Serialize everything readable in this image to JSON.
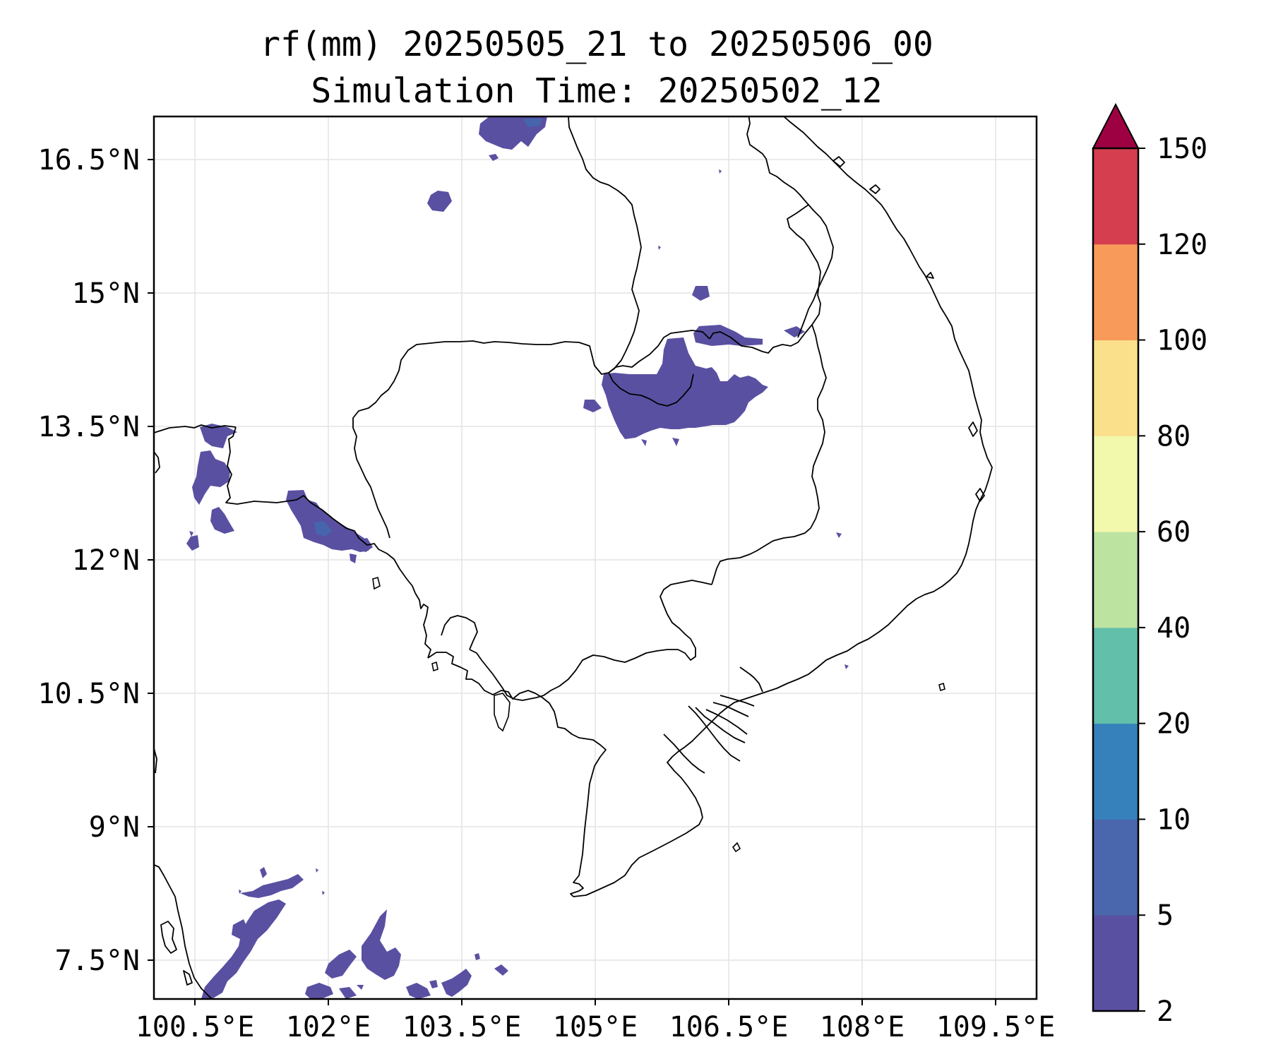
{
  "title": {
    "line1": "rf(mm) 20250505_21 to 20250506_00",
    "line2": "Simulation Time: 20250502_12"
  },
  "map": {
    "x_ticks": [
      "100.5°E",
      "102°E",
      "103.5°E",
      "105°E",
      "106.5°E",
      "108°E",
      "109.5°E"
    ],
    "y_ticks": [
      "16.5°N",
      "15°N",
      "13.5°N",
      "12°N",
      "10.5°N",
      "9°N",
      "7.5°N"
    ],
    "gridlines": true,
    "boundaries_color": "#000000"
  },
  "colorbar": {
    "levels": [
      "2",
      "5",
      "10",
      "20",
      "40",
      "60",
      "80",
      "100",
      "120",
      "150"
    ],
    "colors": [
      "#5a50a2",
      "#4a67ae",
      "#3680bb",
      "#62bfaa",
      "#bde3a1",
      "#f2f8ac",
      "#fbe08c",
      "#f89b5a",
      "#d43e4f",
      "#9e0142"
    ],
    "extend": "max"
  },
  "legend_units": "mm"
}
